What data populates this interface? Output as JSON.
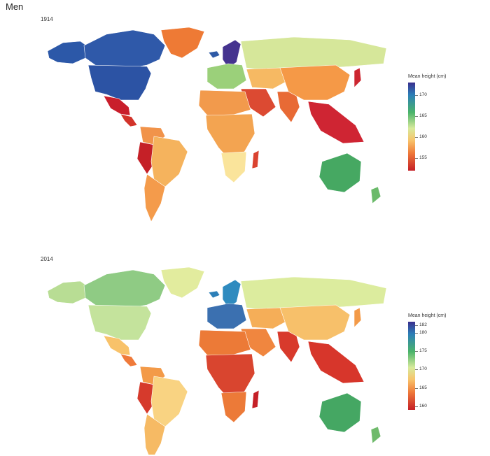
{
  "title": "Men",
  "panels": [
    {
      "year": "1914",
      "legend": {
        "title": "Mean height (cm)",
        "ticks": [
          "170",
          "165",
          "160",
          "155"
        ],
        "min": 152,
        "max": 173,
        "tick_values": [
          170,
          165,
          160,
          155
        ]
      },
      "regions": [
        {
          "name": "Alaska",
          "color": "#2c58a8"
        },
        {
          "name": "Canada",
          "color": "#2f59a9"
        },
        {
          "name": "Greenland",
          "color": "#ee7a35"
        },
        {
          "name": "Iceland",
          "color": "#2e5aa6"
        },
        {
          "name": "United States",
          "color": "#2c53a4"
        },
        {
          "name": "Mexico",
          "color": "#c91e2b"
        },
        {
          "name": "Central America",
          "color": "#d2332a"
        },
        {
          "name": "Colombia-Venezuela",
          "color": "#f1934a"
        },
        {
          "name": "Peru-Ecuador",
          "color": "#c52027"
        },
        {
          "name": "Brazil",
          "color": "#f5b35d"
        },
        {
          "name": "Southern Cone",
          "color": "#f49b4b"
        },
        {
          "name": "Scandinavia",
          "color": "#45338f"
        },
        {
          "name": "Western Europe",
          "color": "#9bd07a"
        },
        {
          "name": "Russia",
          "color": "#d6e79a"
        },
        {
          "name": "Central Asia",
          "color": "#f6b963"
        },
        {
          "name": "Middle East",
          "color": "#dc4a32"
        },
        {
          "name": "India",
          "color": "#e86a35"
        },
        {
          "name": "China",
          "color": "#f59947"
        },
        {
          "name": "Japan",
          "color": "#cc2630"
        },
        {
          "name": "Southeast Asia",
          "color": "#cf2533"
        },
        {
          "name": "North Africa",
          "color": "#f29a4c"
        },
        {
          "name": "Sub-Saharan Africa",
          "color": "#f3a451"
        },
        {
          "name": "Southern Africa",
          "color": "#fae49b"
        },
        {
          "name": "Madagascar",
          "color": "#da4330"
        },
        {
          "name": "Australia",
          "color": "#46a862"
        },
        {
          "name": "New Zealand",
          "color": "#6bba6a"
        }
      ]
    },
    {
      "year": "2014",
      "legend": {
        "title": "Mean height (cm)",
        "ticks": [
          "182",
          "180",
          "175",
          "170",
          "165",
          "160"
        ],
        "min": 159,
        "max": 183,
        "tick_values": [
          182,
          180,
          175,
          170,
          165,
          160
        ]
      },
      "regions": [
        {
          "name": "Alaska",
          "color": "#b8dd94"
        },
        {
          "name": "Canada",
          "color": "#8fcb84"
        },
        {
          "name": "Greenland",
          "color": "#e2ec9e"
        },
        {
          "name": "Iceland",
          "color": "#2c7fb8"
        },
        {
          "name": "United States",
          "color": "#c4e39c"
        },
        {
          "name": "Mexico",
          "color": "#f8c26a"
        },
        {
          "name": "Central America",
          "color": "#ef7a3a"
        },
        {
          "name": "Colombia-Venezuela",
          "color": "#f39a48"
        },
        {
          "name": "Peru-Ecuador",
          "color": "#d63a2c"
        },
        {
          "name": "Brazil",
          "color": "#f9d382"
        },
        {
          "name": "Southern Cone",
          "color": "#f6ba64"
        },
        {
          "name": "Scandinavia",
          "color": "#2f8bbf"
        },
        {
          "name": "Western Europe",
          "color": "#3b70b0"
        },
        {
          "name": "Russia",
          "color": "#dcec9e"
        },
        {
          "name": "Central Asia",
          "color": "#f5ae58"
        },
        {
          "name": "Middle East",
          "color": "#f0863f"
        },
        {
          "name": "India",
          "color": "#d83a2c"
        },
        {
          "name": "China",
          "color": "#f7c06a"
        },
        {
          "name": "Japan",
          "color": "#f39a48"
        },
        {
          "name": "Southeast Asia",
          "color": "#d7362b"
        },
        {
          "name": "North Africa",
          "color": "#ec7a37"
        },
        {
          "name": "Sub-Saharan Africa",
          "color": "#d9452f"
        },
        {
          "name": "Southern Africa",
          "color": "#ec7a38"
        },
        {
          "name": "Madagascar",
          "color": "#c52027"
        },
        {
          "name": "Australia",
          "color": "#45a763"
        },
        {
          "name": "New Zealand",
          "color": "#6fba6b"
        }
      ]
    }
  ]
}
